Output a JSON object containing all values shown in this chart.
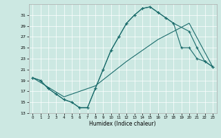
{
  "bg_color": "#cce8e2",
  "line_color": "#1a6b6b",
  "grid_color": "#ffffff",
  "xlabel": "Humidex (Indice chaleur)",
  "xlim": [
    -0.5,
    23.5
  ],
  "ylim": [
    13,
    33
  ],
  "xticks": [
    0,
    1,
    2,
    3,
    4,
    5,
    6,
    7,
    8,
    9,
    10,
    11,
    12,
    13,
    14,
    15,
    16,
    17,
    18,
    19,
    20,
    21,
    22,
    23
  ],
  "yticks": [
    13,
    15,
    17,
    19,
    21,
    23,
    25,
    27,
    29,
    31
  ],
  "s1x": [
    0,
    1,
    2,
    3,
    4,
    5,
    6,
    7,
    8,
    9,
    10,
    11,
    12,
    13,
    14,
    15,
    16,
    17,
    18,
    19,
    20,
    21,
    22,
    23
  ],
  "s1y": [
    19.5,
    19.0,
    17.5,
    16.5,
    15.5,
    15.0,
    14.0,
    14.0,
    17.5,
    21.0,
    24.5,
    27.0,
    29.5,
    31.0,
    32.2,
    32.5,
    31.5,
    30.5,
    29.5,
    25.0,
    25.0,
    23.0,
    22.5,
    21.5
  ],
  "s2x": [
    0,
    1,
    2,
    3,
    4,
    5,
    6,
    7,
    8,
    9,
    10,
    11,
    12,
    13,
    14,
    15,
    16,
    17,
    18,
    20,
    21,
    22,
    23
  ],
  "s2y": [
    19.5,
    19.0,
    17.5,
    16.5,
    15.5,
    15.0,
    14.0,
    14.0,
    17.5,
    21.0,
    24.5,
    27.0,
    29.5,
    31.0,
    32.2,
    32.5,
    31.5,
    30.5,
    29.5,
    28.0,
    25.0,
    22.5,
    21.5
  ],
  "s3x": [
    0,
    4,
    8,
    12,
    16,
    20,
    23
  ],
  "s3y": [
    19.5,
    16.0,
    18.0,
    22.5,
    26.5,
    29.5,
    21.5
  ],
  "xlabel_fontsize": 5.5,
  "tick_fontsize": 4.5
}
